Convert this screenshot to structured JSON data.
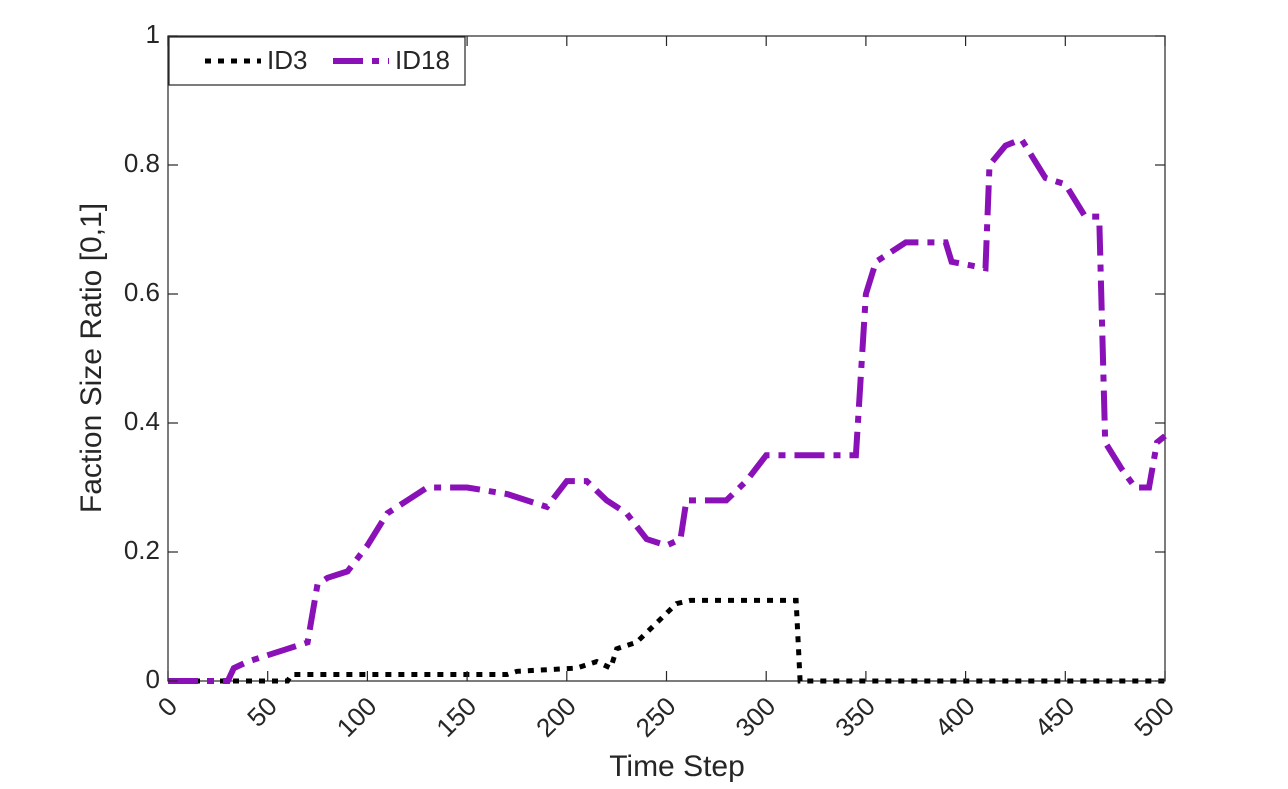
{
  "chart_data": {
    "type": "line",
    "xlabel": "Time Step",
    "ylabel": "Faction Size Ratio [0,1]",
    "xlim": [
      0,
      500
    ],
    "ylim": [
      0,
      1
    ],
    "xticks": [
      0,
      50,
      100,
      150,
      200,
      250,
      300,
      350,
      400,
      450,
      500
    ],
    "yticks": [
      0,
      0.2,
      0.4,
      0.6,
      0.8,
      1
    ],
    "legend": "upper-left",
    "series": [
      {
        "name": "ID3",
        "color": "#000000",
        "linestyle": "dotted",
        "x": [
          0,
          60,
          62,
          170,
          175,
          205,
          215,
          222,
          225,
          235,
          245,
          255,
          262,
          315,
          317,
          500
        ],
        "values": [
          0,
          0,
          0.01,
          0.01,
          0.015,
          0.02,
          0.03,
          0.02,
          0.05,
          0.06,
          0.09,
          0.12,
          0.125,
          0.125,
          0,
          0
        ]
      },
      {
        "name": "ID18",
        "color": "#8a10b8",
        "linestyle": "dashdot",
        "x": [
          0,
          30,
          33,
          40,
          50,
          60,
          70,
          75,
          80,
          90,
          100,
          110,
          120,
          130,
          150,
          170,
          190,
          200,
          210,
          220,
          230,
          240,
          250,
          257,
          260,
          280,
          290,
          300,
          345,
          350,
          355,
          370,
          390,
          393,
          410,
          412,
          420,
          428,
          440,
          450,
          460,
          467,
          470,
          478,
          485,
          492,
          496,
          500
        ],
        "values": [
          0,
          0,
          0.02,
          0.03,
          0.04,
          0.05,
          0.06,
          0.15,
          0.16,
          0.17,
          0.21,
          0.26,
          0.28,
          0.3,
          0.3,
          0.29,
          0.27,
          0.31,
          0.31,
          0.28,
          0.26,
          0.22,
          0.21,
          0.22,
          0.28,
          0.28,
          0.31,
          0.35,
          0.35,
          0.6,
          0.65,
          0.68,
          0.68,
          0.65,
          0.64,
          0.8,
          0.83,
          0.84,
          0.78,
          0.77,
          0.72,
          0.72,
          0.37,
          0.33,
          0.3,
          0.3,
          0.37,
          0.38
        ]
      }
    ]
  }
}
